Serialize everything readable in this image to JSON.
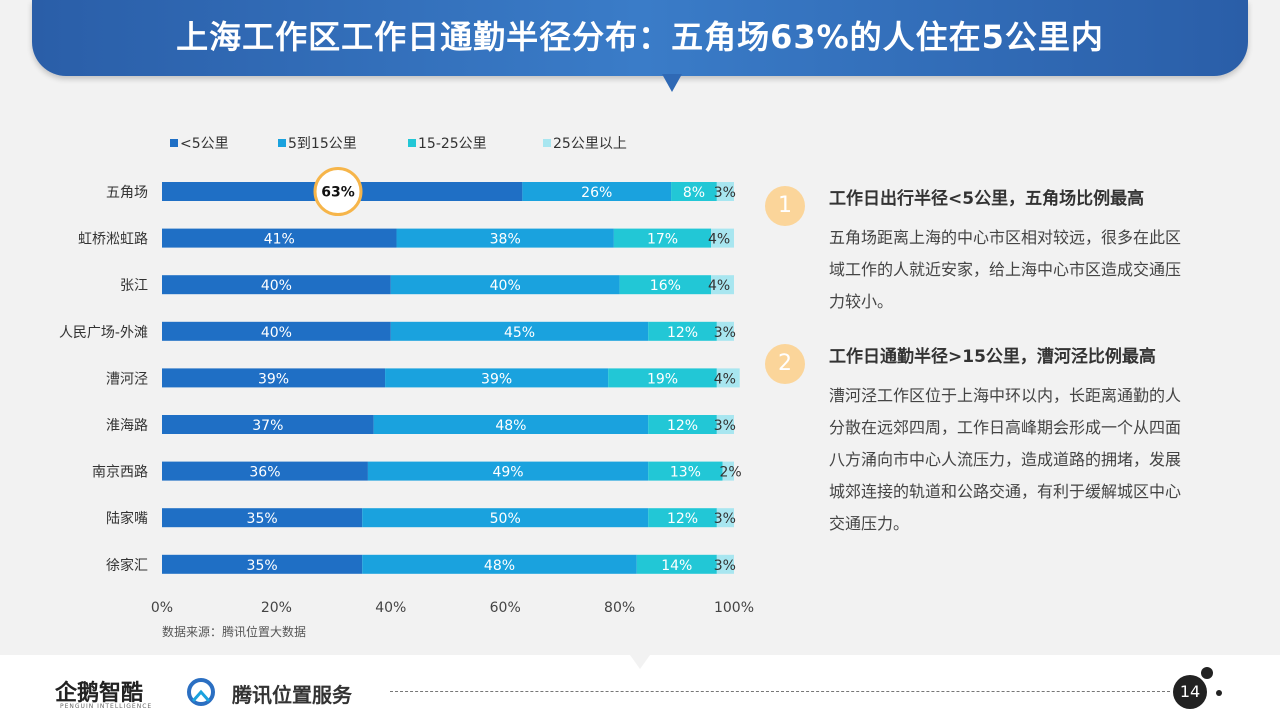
{
  "header": {
    "title": "上海工作区工作日通勤半径分布：五角场63%的人住在5公里内"
  },
  "chart_data": {
    "type": "bar",
    "orientation": "horizontal",
    "stacked": true,
    "categories": [
      "五角场",
      "虹桥淞虹路",
      "张江",
      "人民广场-外滩",
      "漕河泾",
      "淮海路",
      "南京西路",
      "陆家嘴",
      "徐家汇"
    ],
    "series": [
      {
        "name": "<5公里",
        "color": "#1f6fc5",
        "values": [
          63,
          41,
          40,
          40,
          39,
          37,
          36,
          35,
          35
        ]
      },
      {
        "name": "5到15公里",
        "color": "#1aa2de",
        "values": [
          26,
          38,
          40,
          45,
          39,
          48,
          49,
          50,
          48
        ]
      },
      {
        "name": "15-25公里",
        "color": "#22c7d6",
        "values": [
          8,
          17,
          16,
          12,
          19,
          12,
          13,
          12,
          14
        ]
      },
      {
        "name": "25公里以上",
        "color": "#a8e6f0",
        "values": [
          3,
          4,
          4,
          3,
          4,
          3,
          2,
          3,
          3
        ]
      }
    ],
    "xlim": [
      0,
      100
    ],
    "xticks": [
      "0%",
      "20%",
      "40%",
      "60%",
      "80%",
      "100%"
    ],
    "legend": "top",
    "highlight": {
      "category": "五角场",
      "label": "63%"
    },
    "source": "数据来源：腾讯位置大数据"
  },
  "notes": [
    {
      "num": "1",
      "title": "工作日出行半径<5公里，五角场比例最高",
      "body": "五角场距离上海的中心市区相对较远，很多在此区域工作的人就近安家，给上海中心市区造成交通压力较小。"
    },
    {
      "num": "2",
      "title": "工作日通勤半径>15公里，漕河泾比例最高",
      "body": "漕河泾工作区位于上海中环以内，长距离通勤的人分散在远郊四周，工作日高峰期会形成一个从四面八方涌向市中心人流压力，造成道路的拥堵，发展城郊连接的轨道和公路交通，有利于缓解城区中心交通压力。"
    }
  ],
  "footer": {
    "logo1": "企鹅智酷",
    "logo1_sub": "PENGUIN INTELLIGENCE",
    "logo2": "腾讯位置服务",
    "page": "14"
  }
}
